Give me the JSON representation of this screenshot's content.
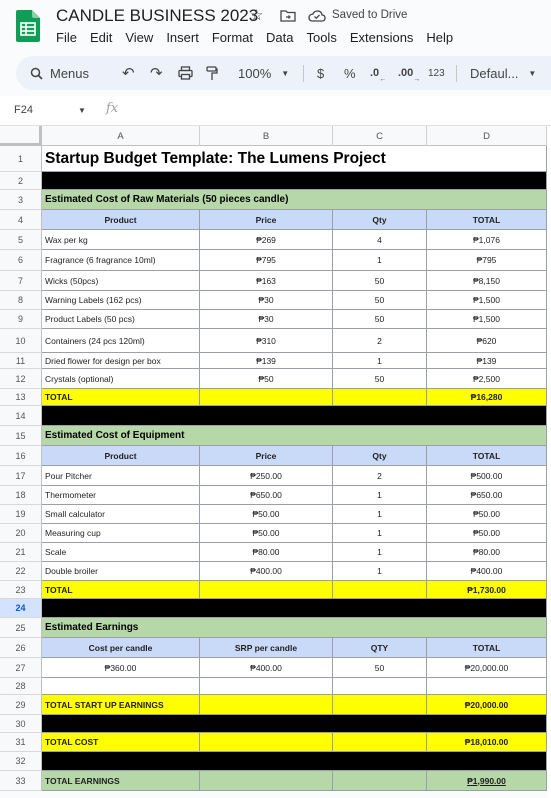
{
  "app": {
    "title": "CANDLE BUSINESS 2023",
    "saved_status": "Saved to Drive",
    "icons": {
      "logo": "sheets-logo",
      "star": "star-icon",
      "move": "move-to-folder-icon",
      "cloud": "cloud-saved-icon"
    }
  },
  "menu": [
    "File",
    "Edit",
    "View",
    "Insert",
    "Format",
    "Data",
    "Tools",
    "Extensions",
    "Help"
  ],
  "toolbar": {
    "search_label": "Menus",
    "zoom": "100%",
    "currency": "$",
    "percent": "%",
    "decrease_decimal": ".0",
    "increase_decimal": ".00",
    "number_format": "123",
    "font": "Defaul..."
  },
  "formula_bar": {
    "name_box": "F24",
    "fx": "fx",
    "value": ""
  },
  "columns": [
    "A",
    "B",
    "C",
    "D"
  ],
  "selected_row": "24",
  "rows": [
    {
      "n": "1",
      "type": "title",
      "a": "Startup Budget Template: The Lumens Project"
    },
    {
      "n": "2",
      "type": "black"
    },
    {
      "n": "3",
      "type": "section",
      "a": "Estimated Cost of Raw Materials (50 pieces candle)"
    },
    {
      "n": "4",
      "type": "header",
      "a": "Product",
      "b": "Price",
      "c": "Qty",
      "d": "TOTAL"
    },
    {
      "n": "5",
      "type": "data",
      "a": "Wax per kg",
      "b": "₱269",
      "c": "4",
      "d": "₱1,076"
    },
    {
      "n": "6",
      "type": "data",
      "a": "Fragrance (6 fragrance 10ml)",
      "b": "₱795",
      "c": "1",
      "d": "₱795"
    },
    {
      "n": "7",
      "type": "data",
      "a": "Wicks (50pcs)",
      "b": "₱163",
      "c": "50",
      "d": "₱8,150"
    },
    {
      "n": "8",
      "type": "data",
      "a": "Warning Labels (162 pcs)",
      "b": "₱30",
      "c": "50",
      "d": "₱1,500"
    },
    {
      "n": "9",
      "type": "data",
      "a": "Product Labels (50 pcs)",
      "b": "₱30",
      "c": "50",
      "d": "₱1,500"
    },
    {
      "n": "10",
      "type": "data",
      "a": "Containers (24 pcs 120ml)",
      "b": "₱310",
      "c": "2",
      "d": "₱620"
    },
    {
      "n": "11",
      "type": "data",
      "a": "Dried flower for design per box",
      "b": "₱139",
      "c": "1",
      "d": "₱139"
    },
    {
      "n": "12",
      "type": "data",
      "a": "Crystals (optional)",
      "b": "₱50",
      "c": "50",
      "d": "₱2,500"
    },
    {
      "n": "13",
      "type": "total",
      "a": "TOTAL",
      "d": "₱16,280"
    },
    {
      "n": "14",
      "type": "black"
    },
    {
      "n": "15",
      "type": "section",
      "a": "Estimated Cost of Equipment"
    },
    {
      "n": "16",
      "type": "header",
      "a": "Product",
      "b": "Price",
      "c": "Qty",
      "d": "TOTAL"
    },
    {
      "n": "17",
      "type": "data",
      "a": "Pour Pitcher",
      "b": "₱250.00",
      "c": "2",
      "d": "₱500.00"
    },
    {
      "n": "18",
      "type": "data",
      "a": "Thermometer",
      "b": "₱650.00",
      "c": "1",
      "d": "₱650.00"
    },
    {
      "n": "19",
      "type": "data",
      "a": "Small calculator",
      "b": "₱50.00",
      "c": "1",
      "d": "₱50.00"
    },
    {
      "n": "20",
      "type": "data",
      "a": "Measuring cup",
      "b": "₱50.00",
      "c": "1",
      "d": "₱50.00"
    },
    {
      "n": "21",
      "type": "data",
      "a": "Scale",
      "b": "₱80.00",
      "c": "1",
      "d": "₱80.00"
    },
    {
      "n": "22",
      "type": "data",
      "a": "Double broiler",
      "b": "₱400.00",
      "c": "1",
      "d": "₱400.00"
    },
    {
      "n": "23",
      "type": "total",
      "a": "TOTAL",
      "d": "₱1,730.00"
    },
    {
      "n": "24",
      "type": "black"
    },
    {
      "n": "25",
      "type": "section",
      "a": "Estimated Earnings"
    },
    {
      "n": "26",
      "type": "header",
      "a": "Cost per candle",
      "b": "SRP per candle",
      "c": "QTY",
      "d": "TOTAL"
    },
    {
      "n": "27",
      "type": "datac",
      "a": "₱360.00",
      "b": "₱400.00",
      "c": "50",
      "d": "₱20,000.00"
    },
    {
      "n": "28",
      "type": "blank"
    },
    {
      "n": "29",
      "type": "total",
      "a": "TOTAL START UP EARNINGS",
      "d": "₱20,000.00"
    },
    {
      "n": "30",
      "type": "black"
    },
    {
      "n": "31",
      "type": "total",
      "a": "TOTAL COST",
      "d": "₱18,010.00"
    },
    {
      "n": "32",
      "type": "black"
    },
    {
      "n": "33",
      "type": "earnings",
      "a": "TOTAL EARNINGS",
      "d": "₱1,990.00"
    }
  ]
}
